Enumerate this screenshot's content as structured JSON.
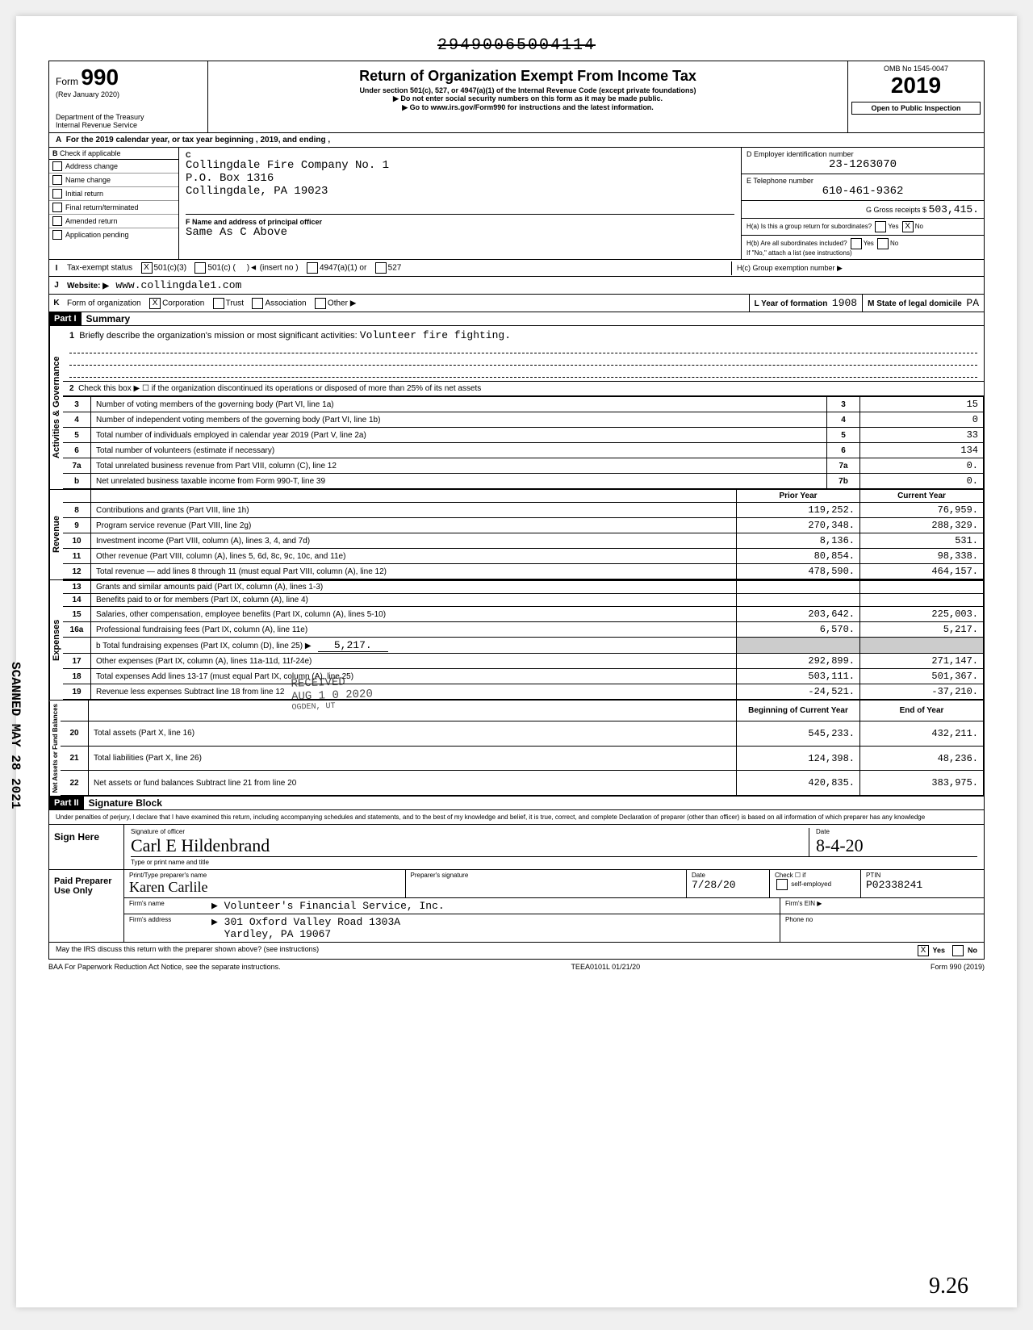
{
  "doc_number_struck": "29490065004114",
  "header": {
    "form_label": "Form",
    "form_number": "990",
    "rev": "(Rev January 2020)",
    "dept": "Department of the Treasury",
    "irs": "Internal Revenue Service",
    "title": "Return of Organization Exempt From Income Tax",
    "subtitle1": "Under section 501(c), 527, or 4947(a)(1) of the Internal Revenue Code (except private foundations)",
    "subtitle2": "▶ Do not enter social security numbers on this form as it may be made public.",
    "subtitle3": "▶ Go to www.irs.gov/Form990 for instructions and the latest information.",
    "omb": "OMB No 1545-0047",
    "year": "2019",
    "open": "Open to Public Inspection"
  },
  "row_a": "For the 2019 calendar year, or tax year beginning                              , 2019, and ending                              ,",
  "section_b": {
    "header": "Check if applicable",
    "items": [
      "Address change",
      "Name change",
      "Initial return",
      "Final return/terminated",
      "Amended return",
      "Application pending"
    ],
    "c_label": "C",
    "org_name": "Collingdale Fire Company No. 1",
    "org_addr1": "P.O. Box 1316",
    "org_addr2": "Collingdale, PA 19023",
    "f_label": "F  Name and address of principal officer",
    "f_value": "Same As C Above",
    "d_label": "D  Employer identification number",
    "d_value": "23-1263070",
    "e_label": "E  Telephone number",
    "e_value": "610-461-9362",
    "g_label": "G  Gross receipts $",
    "g_value": "503,415.",
    "ha_label": "H(a) Is this a group return for subordinates?",
    "hb_label": "H(b) Are all subordinates included?",
    "h_note": "If \"No,\" attach a list (see instructions)",
    "hc_label": "H(c) Group exemption number ▶"
  },
  "line_i": {
    "label": "Tax-exempt status",
    "opt1": "501(c)(3)",
    "opt2": "501(c) (",
    "opt2_suffix": ")◄  (insert no )",
    "opt3": "4947(a)(1) or",
    "opt4": "527"
  },
  "line_j": {
    "label": "Website: ▶",
    "value": "www.collingdale1.com"
  },
  "line_k": {
    "label": "Form of organization",
    "opts": [
      "Corporation",
      "Trust",
      "Association",
      "Other ▶"
    ],
    "l_label": "L Year of formation",
    "l_value": "1908",
    "m_label": "M State of legal domicile",
    "m_value": "PA"
  },
  "part1": {
    "header": "Part I",
    "title": "Summary",
    "line1_label": "Briefly describe the organization's mission or most significant activities:",
    "line1_value": "Volunteer fire fighting.",
    "line2": "Check this box ▶ ☐  if the organization discontinued its operations or disposed of more than 25% of its net assets",
    "governance_rows": [
      {
        "n": "3",
        "desc": "Number of voting members of the governing body (Part VI, line 1a)",
        "box": "3",
        "val": "15"
      },
      {
        "n": "4",
        "desc": "Number of independent voting members of the governing body (Part VI, line 1b)",
        "box": "4",
        "val": "0"
      },
      {
        "n": "5",
        "desc": "Total number of individuals employed in calendar year 2019 (Part V, line 2a)",
        "box": "5",
        "val": "33"
      },
      {
        "n": "6",
        "desc": "Total number of volunteers (estimate if necessary)",
        "box": "6",
        "val": "134"
      },
      {
        "n": "7a",
        "desc": "Total unrelated business revenue from Part VIII, column (C), line 12",
        "box": "7a",
        "val": "0."
      },
      {
        "n": "b",
        "desc": "Net unrelated business taxable income from Form 990-T, line 39",
        "box": "7b",
        "val": "0."
      }
    ],
    "col_headers": [
      "Prior Year",
      "Current Year"
    ],
    "revenue_rows": [
      {
        "n": "8",
        "desc": "Contributions and grants (Part VIII, line 1h)",
        "prior": "119,252.",
        "curr": "76,959."
      },
      {
        "n": "9",
        "desc": "Program service revenue (Part VIII, line 2g)",
        "prior": "270,348.",
        "curr": "288,329."
      },
      {
        "n": "10",
        "desc": "Investment income (Part VIII, column (A), lines 3, 4, and 7d)",
        "prior": "8,136.",
        "curr": "531."
      },
      {
        "n": "11",
        "desc": "Other revenue (Part VIII, column (A), lines 5, 6d, 8c, 9c, 10c, and 11e)",
        "prior": "80,854.",
        "curr": "98,338."
      },
      {
        "n": "12",
        "desc": "Total revenue — add lines 8 through 11 (must equal Part VIII, column (A), line 12)",
        "prior": "478,590.",
        "curr": "464,157."
      }
    ],
    "expense_rows": [
      {
        "n": "13",
        "desc": "Grants and similar amounts paid (Part IX, column (A), lines 1-3)",
        "prior": "",
        "curr": ""
      },
      {
        "n": "14",
        "desc": "Benefits paid to or for members (Part IX, column (A), line 4)",
        "prior": "",
        "curr": ""
      },
      {
        "n": "15",
        "desc": "Salaries, other compensation, employee benefits (Part IX, column (A), lines 5-10)",
        "prior": "203,642.",
        "curr": "225,003."
      },
      {
        "n": "16a",
        "desc": "Professional fundraising fees (Part IX, column (A), line 11e)",
        "prior": "6,570.",
        "curr": "5,217."
      }
    ],
    "line16b": {
      "desc": "b Total fundraising expenses (Part IX, column (D), line 25) ▶",
      "val": "5,217."
    },
    "expense_rows2": [
      {
        "n": "17",
        "desc": "Other expenses (Part IX, column (A), lines 11a-11d, 11f-24e)",
        "prior": "292,899.",
        "curr": "271,147."
      },
      {
        "n": "18",
        "desc": "Total expenses Add lines 13-17 (must equal Part IX, column (A), line 25)",
        "prior": "503,111.",
        "curr": "501,367."
      },
      {
        "n": "19",
        "desc": "Revenue less expenses Subtract line 18 from line 12",
        "prior": "-24,521.",
        "curr": "-37,210."
      }
    ],
    "net_headers": [
      "Beginning of Current Year",
      "End of Year"
    ],
    "net_rows": [
      {
        "n": "20",
        "desc": "Total assets (Part X, line 16)",
        "prior": "545,233.",
        "curr": "432,211."
      },
      {
        "n": "21",
        "desc": "Total liabilities (Part X, line 26)",
        "prior": "124,398.",
        "curr": "48,236."
      },
      {
        "n": "22",
        "desc": "Net assets or fund balances Subtract line 21 from line 20",
        "prior": "420,835.",
        "curr": "383,975."
      }
    ],
    "side_labels": {
      "gov": "Activities & Governance",
      "rev": "Revenue",
      "exp": "Expenses",
      "net": "Net Assets or\nFund Balances"
    }
  },
  "part2": {
    "header": "Part II",
    "title": "Signature Block",
    "declaration": "Under penalties of perjury, I declare that I have examined this return, including accompanying schedules and statements, and to the best of my knowledge and belief, it is true, correct, and complete Declaration of preparer (other than officer) is based on all information of which preparer has any knowledge",
    "sign_here": "Sign Here",
    "sig_officer_label": "Signature of officer",
    "sig_date": "8-4-20",
    "sig_officer_sig": "Carl E Hildenbrand",
    "type_name_label": "Type or print name and title",
    "paid_prep": "Paid Preparer Use Only",
    "prep_name_label": "Print/Type preparer's name",
    "prep_sig_label": "Preparer's signature",
    "prep_name": "Karen Carlile",
    "prep_date": "7/28/20",
    "ptin_label": "PTIN",
    "ptin": "P02338241",
    "self_emp": "self-employed",
    "firm_name_label": "Firm's name",
    "firm_name": "Volunteer's Financial Service, Inc.",
    "firm_addr_label": "Firm's address",
    "firm_addr1": "301 Oxford Valley Road 1303A",
    "firm_addr2": "Yardley, PA 19067",
    "firm_ein_label": "Firm's EIN ▶",
    "phone_label": "Phone no",
    "discuss": "May the IRS discuss this return with the preparer shown above? (see instructions)",
    "check_label": "Check ☐ if"
  },
  "footer": {
    "baa": "BAA  For Paperwork Reduction Act Notice, see the separate instructions.",
    "mid": "TEEA0101L 01/21/20",
    "right": "Form 990 (2019)"
  },
  "stamps": {
    "received": "RECEIVED",
    "date": "AUG 1 0 2020",
    "ogden": "OGDEN, UT",
    "side": "SCANNED MAY 28 2021",
    "handwritten": "9.26"
  }
}
